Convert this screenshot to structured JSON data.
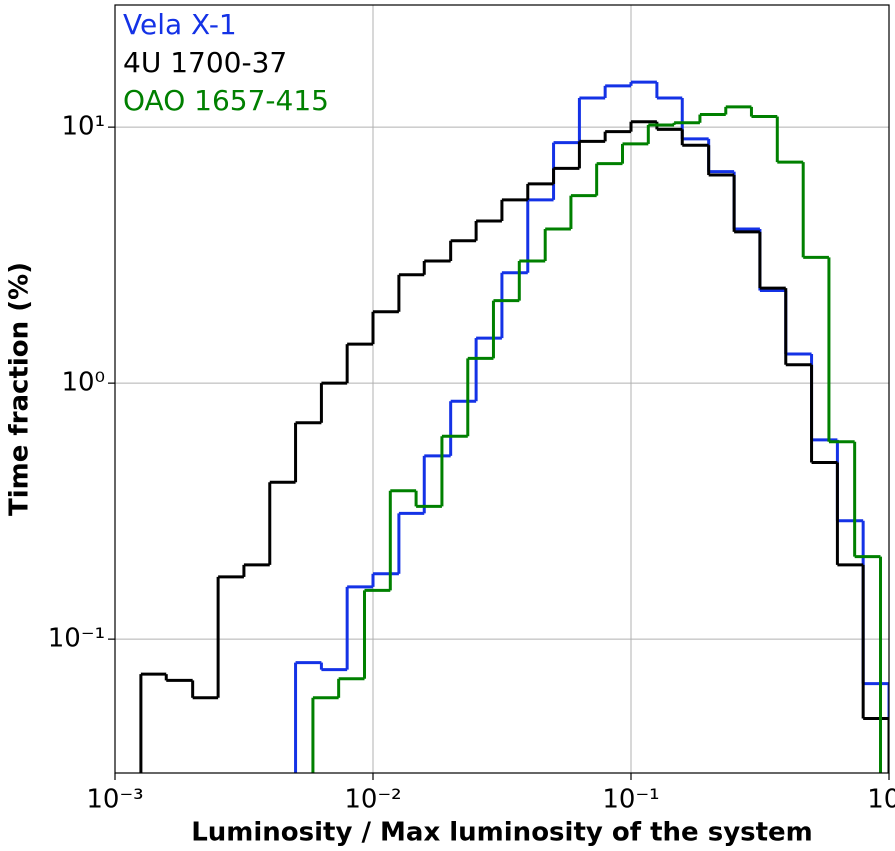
{
  "chart_data": {
    "type": "histogram",
    "xlabel": "Luminosity / Max luminosity of the system",
    "ylabel": "Time fraction (%)",
    "xlim": [
      0.001,
      1
    ],
    "ylim": [
      0.03,
      30
    ],
    "xscale": "log",
    "yscale": "log",
    "grid": true,
    "legend": "upper left",
    "xticks": [
      {
        "value": 0.001,
        "label": "10⁻³"
      },
      {
        "value": 0.01,
        "label": "10⁻²"
      },
      {
        "value": 0.1,
        "label": "10⁻¹"
      },
      {
        "value": 1,
        "label": "10⁰"
      }
    ],
    "yticks": [
      {
        "value": 0.1,
        "label": "10⁻¹"
      },
      {
        "value": 1,
        "label": "10⁰"
      },
      {
        "value": 10,
        "label": "10¹"
      }
    ],
    "series": [
      {
        "name": "Vela X-1",
        "color": "#1432e6",
        "bins": [
          0.00501,
          0.00631,
          0.00794,
          0.01,
          0.0126,
          0.0158,
          0.02,
          0.0251,
          0.0316,
          0.0398,
          0.0501,
          0.0631,
          0.0794,
          0.1,
          0.126,
          0.158,
          0.2,
          0.251,
          0.316,
          0.398,
          0.501,
          0.631,
          0.794,
          1
        ],
        "values": [
          0.081,
          0.076,
          0.16,
          0.18,
          0.31,
          0.52,
          0.85,
          1.5,
          2.7,
          5.2,
          8.7,
          13,
          14.5,
          15,
          13,
          9,
          6.7,
          4,
          2.3,
          1.3,
          0.6,
          0.29,
          0.067
        ]
      },
      {
        "name": "4U 1700-37",
        "color": "#000000",
        "bins": [
          0.00126,
          0.00158,
          0.002,
          0.00251,
          0.00316,
          0.00398,
          0.00501,
          0.00631,
          0.00794,
          0.01,
          0.0126,
          0.0158,
          0.02,
          0.0251,
          0.0316,
          0.0398,
          0.0501,
          0.0631,
          0.0794,
          0.1,
          0.126,
          0.158,
          0.2,
          0.251,
          0.316,
          0.398,
          0.501,
          0.631,
          0.794,
          1
        ],
        "values": [
          0.073,
          0.069,
          0.059,
          0.175,
          0.195,
          0.41,
          0.7,
          1.0,
          1.42,
          1.9,
          2.65,
          3.0,
          3.6,
          4.3,
          5.2,
          6.0,
          6.9,
          8.8,
          9.6,
          10.5,
          9.8,
          8.5,
          6.5,
          3.9,
          2.35,
          1.18,
          0.49,
          0.195,
          0.049
        ]
      },
      {
        "name": "OAO 1657-415",
        "color": "#008000",
        "bins": [
          0.00585,
          0.00736,
          0.00927,
          0.01167,
          0.01469,
          0.0185,
          0.0233,
          0.0293,
          0.0369,
          0.0465,
          0.0585,
          0.0736,
          0.0927,
          0.1167,
          0.1469,
          0.185,
          0.233,
          0.293,
          0.369,
          0.465,
          0.585,
          0.736,
          0.927
        ],
        "values": [
          0.059,
          0.07,
          0.155,
          0.38,
          0.33,
          0.62,
          1.25,
          2.1,
          3.0,
          4.0,
          5.4,
          7.2,
          8.6,
          10.2,
          10.4,
          11.2,
          12.0,
          11.0,
          7.3,
          3.1,
          0.59,
          0.21
        ]
      }
    ]
  }
}
